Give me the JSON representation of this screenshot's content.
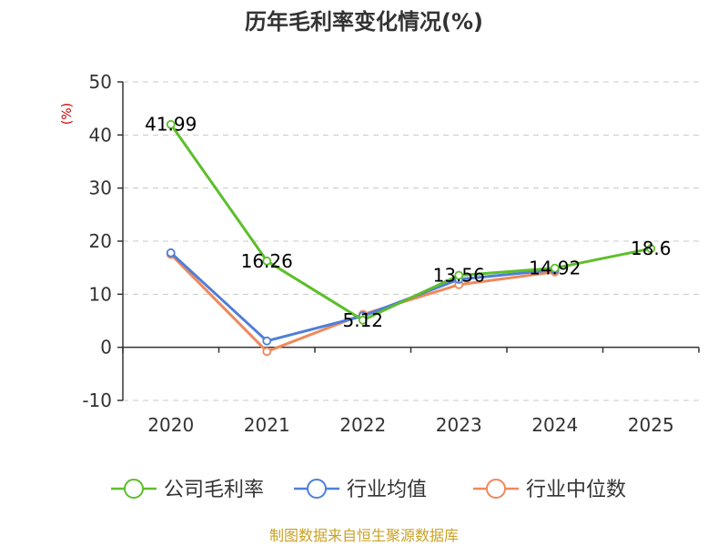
{
  "chart_data": {
    "type": "line",
    "title": "历年毛利率变化情况(%)",
    "ylabel": "(%)",
    "xlabel": "",
    "categories": [
      "2020",
      "2021",
      "2022",
      "2023",
      "2024",
      "2025"
    ],
    "ylim": [
      -10,
      50
    ],
    "yticks": [
      -10,
      0,
      10,
      20,
      30,
      40,
      50
    ],
    "grid": true,
    "legend_position": "bottom",
    "series": [
      {
        "name": "公司毛利率",
        "color": "#5cbf2a",
        "values": [
          41.99,
          16.26,
          5.12,
          13.56,
          14.92,
          18.6
        ],
        "labels": [
          "41.99",
          "16.26",
          "5.12",
          "13.56",
          "14.92",
          "18.6"
        ]
      },
      {
        "name": "行业均值",
        "color": "#4e7fd8",
        "values": [
          17.8,
          1.2,
          5.9,
          12.8,
          14.6,
          null
        ]
      },
      {
        "name": "行业中位数",
        "color": "#f0885a",
        "values": [
          17.5,
          -0.8,
          6.2,
          11.8,
          14.2,
          null
        ]
      }
    ]
  },
  "source": "制图数据来自恒生聚源数据库"
}
